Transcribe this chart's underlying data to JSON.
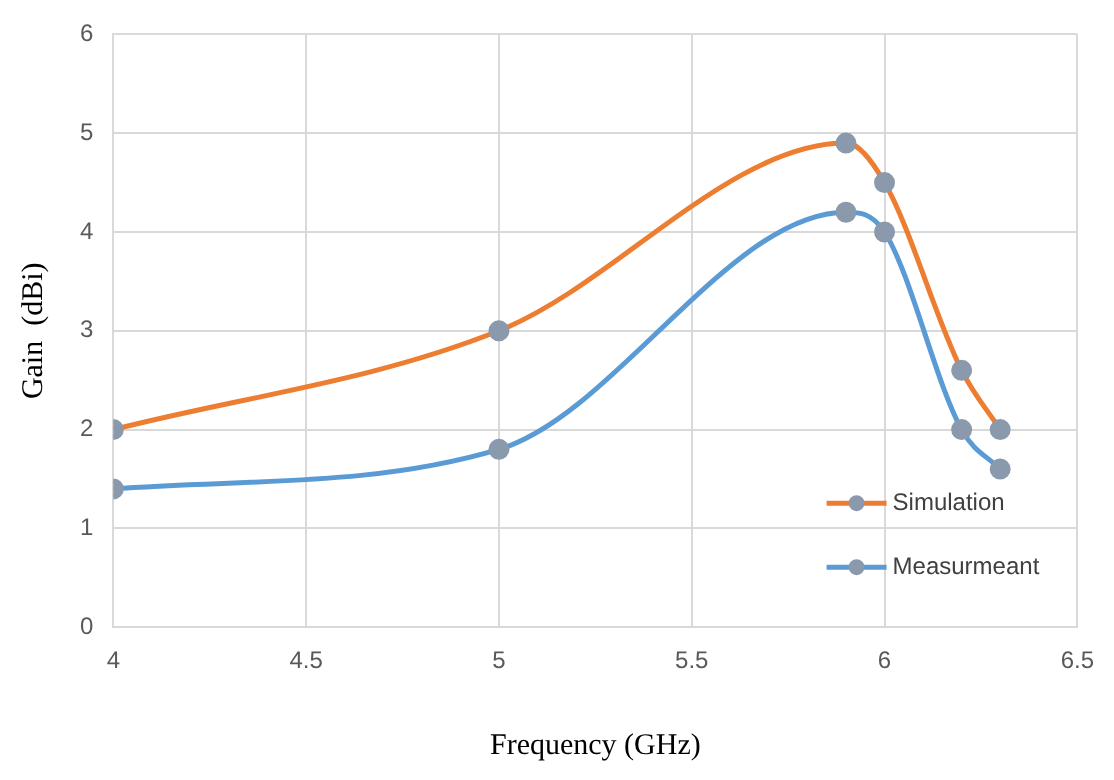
{
  "chart_data": {
    "type": "line",
    "xlabel": "Frequency (GHz)",
    "ylabel": "Gain  (dBi)",
    "x": [
      4,
      5,
      5.9,
      6,
      6.2,
      6.3
    ],
    "series": [
      {
        "name": "Simulation",
        "color": "#ed7d31",
        "values": [
          2,
          3,
          4.9,
          4.5,
          2.6,
          2.0
        ]
      },
      {
        "name": "Measurmeant",
        "color": "#5b9bd5",
        "values": [
          1.4,
          1.8,
          4.2,
          4.0,
          2.0,
          1.6
        ]
      }
    ],
    "xlim": [
      4,
      6.5
    ],
    "xticks": [
      4,
      4.5,
      5,
      5.5,
      6,
      6.5
    ],
    "ylim": [
      0,
      6
    ],
    "yticks": [
      0,
      1,
      2,
      3,
      4,
      5,
      6
    ],
    "grid": true,
    "legend": "bottom right",
    "marker": "circle",
    "line_style": "solid"
  }
}
